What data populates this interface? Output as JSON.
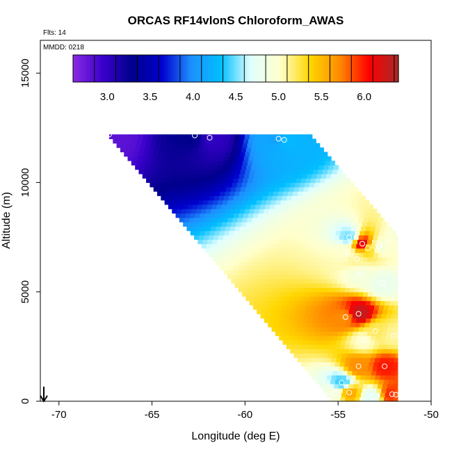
{
  "chart_data": {
    "type": "heatmap",
    "title": "ORCAS RF14vlonS Chloroform_AWAS",
    "notes": {
      "flights": "Flts: 14",
      "date": "MMDD: 0218"
    },
    "xlabel": "Longitude (deg E)",
    "ylabel": "Altitude (m)",
    "xlim": [
      -71,
      -50
    ],
    "ylim": [
      0,
      16500
    ],
    "x_ticks": [
      -70,
      -65,
      -60,
      -55,
      -50
    ],
    "y_ticks": [
      0,
      5000,
      10000,
      15000
    ],
    "x_tick_labels": [
      "-70",
      "-65",
      "-60",
      "-55",
      "-50"
    ],
    "y_tick_labels": [
      "0",
      "5000",
      "10000",
      "15000"
    ],
    "colorbar": {
      "range": [
        2.6,
        6.4
      ],
      "ticks": [
        3.0,
        3.5,
        4.0,
        4.5,
        5.0,
        5.5,
        6.0
      ],
      "tick_labels": [
        "3.0",
        "3.5",
        "4.0",
        "4.5",
        "5.0",
        "5.5",
        "6.0"
      ],
      "colors": [
        "#8a2be2",
        "#3a00cc",
        "#00008b",
        "#0000cd",
        "#1e90ff",
        "#00bfff",
        "#e0ffff",
        "#ffffcc",
        "#ffd700",
        "#ff8c00",
        "#ff0000",
        "#a52a2a"
      ]
    },
    "region": {
      "top_altitude": 12200,
      "top_left_lon": -67.4,
      "bottom_left_lon": -55.3,
      "top_right_lon": -56.5,
      "right_lon": -51.8,
      "right_top_altitude": 7600
    },
    "samples": [
      {
        "lon": -67.3,
        "alt": 12200,
        "value": 2.8
      },
      {
        "lon": -62.7,
        "alt": 12150,
        "value": 3.3
      },
      {
        "lon": -61.9,
        "alt": 12050,
        "value": 3.0
      },
      {
        "lon": -58.2,
        "alt": 12000,
        "value": 4.1
      },
      {
        "lon": -57.9,
        "alt": 11950,
        "value": 4.3
      },
      {
        "lon": -54.4,
        "alt": 7500,
        "value": 4.5
      },
      {
        "lon": -53.7,
        "alt": 7200,
        "value": 6.3
      },
      {
        "lon": -53.4,
        "alt": 7000,
        "value": 5.3
      },
      {
        "lon": -52.8,
        "alt": 7100,
        "value": 4.9
      },
      {
        "lon": -52.3,
        "alt": 7300,
        "value": 5.0
      },
      {
        "lon": -51.6,
        "alt": 7550,
        "value": 4.9
      },
      {
        "lon": -54.5,
        "alt": 6800,
        "value": 5.0
      },
      {
        "lon": -54.0,
        "alt": 6500,
        "value": 5.1
      },
      {
        "lon": -53.8,
        "alt": 5800,
        "value": 4.9
      },
      {
        "lon": -52.6,
        "alt": 5400,
        "value": 4.8
      },
      {
        "lon": -54.6,
        "alt": 3850,
        "value": 5.7
      },
      {
        "lon": -53.9,
        "alt": 4000,
        "value": 6.3
      },
      {
        "lon": -53.0,
        "alt": 3200,
        "value": 5.2
      },
      {
        "lon": -52.0,
        "alt": 3000,
        "value": 5.1
      },
      {
        "lon": -53.6,
        "alt": 2800,
        "value": 5.0
      },
      {
        "lon": -53.9,
        "alt": 1600,
        "value": 5.7
      },
      {
        "lon": -52.5,
        "alt": 1600,
        "value": 6.0
      },
      {
        "lon": -54.8,
        "alt": 850,
        "value": 4.4
      },
      {
        "lon": -55.2,
        "alt": 350,
        "value": 4.9
      },
      {
        "lon": -54.4,
        "alt": 400,
        "value": 5.6
      },
      {
        "lon": -53.2,
        "alt": 200,
        "value": 4.7
      },
      {
        "lon": -52.1,
        "alt": 320,
        "value": 6.0
      },
      {
        "lon": -51.9,
        "alt": 300,
        "value": 5.8
      }
    ]
  }
}
